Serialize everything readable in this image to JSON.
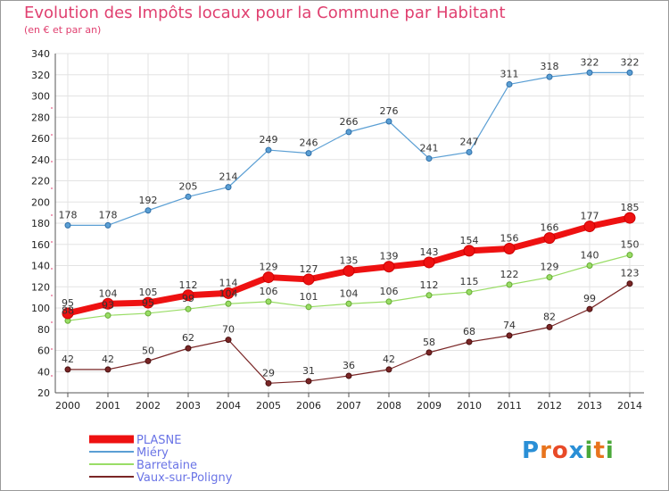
{
  "header": {
    "title": "Evolution des Impôts locaux pour la Commune par Habitant",
    "subtitle": "(en € et par an)"
  },
  "logo": {
    "text": "Proxiti",
    "colors": [
      "#2a8fd6",
      "#e8741e",
      "#e84a28",
      "#2a8fd6",
      "#4aa83a",
      "#e8741e",
      "#4aa83a"
    ]
  },
  "chart_data": {
    "type": "line",
    "title": "Evolution des Impôts locaux pour la Commune par Habitant",
    "subtitle": "(en € et par an)",
    "xlabel": "",
    "ylabel": "",
    "x": [
      "2000",
      "2001",
      "2002",
      "2003",
      "2004",
      "2005",
      "2006",
      "2007",
      "2008",
      "2009",
      "2010",
      "2011",
      "2012",
      "2013",
      "2014"
    ],
    "ylim": [
      20,
      340
    ],
    "yticks": [
      20,
      40,
      60,
      80,
      100,
      120,
      140,
      160,
      180,
      200,
      220,
      240,
      260,
      280,
      300,
      320,
      340
    ],
    "grid": true,
    "legend_position": "bottom-left",
    "series": [
      {
        "name": "PLASNE",
        "color": "#ee1111",
        "values": [
          95,
          104,
          105,
          112,
          114,
          129,
          127,
          135,
          139,
          143,
          154,
          156,
          166,
          177,
          185
        ]
      },
      {
        "name": "Miéry",
        "color": "#5b9fd4",
        "values": [
          178,
          178,
          192,
          205,
          214,
          249,
          246,
          266,
          276,
          241,
          247,
          311,
          318,
          322,
          322
        ]
      },
      {
        "name": "Barretaine",
        "color": "#99dd66",
        "values": [
          88,
          93,
          95,
          99,
          104,
          106,
          101,
          104,
          106,
          112,
          115,
          122,
          129,
          140,
          150
        ]
      },
      {
        "name": "Vaux-sur-Poligny",
        "color": "#7a2626",
        "values": [
          42,
          42,
          50,
          62,
          70,
          29,
          31,
          36,
          42,
          58,
          68,
          74,
          82,
          99,
          123
        ]
      }
    ]
  }
}
